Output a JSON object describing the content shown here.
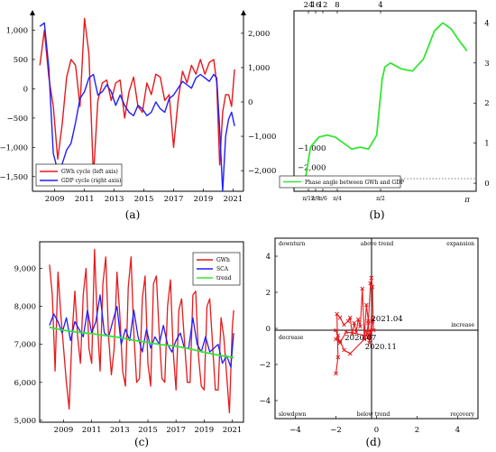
{
  "chart_data": [
    {
      "panel": "a",
      "type": "line",
      "caption": "(a)",
      "x_ticks": [
        "2009",
        "2011",
        "2013",
        "2015",
        "2017",
        "2019",
        "2021"
      ],
      "y_left_ticks": [
        "1,000",
        "500",
        "0",
        "−500",
        "−1,000",
        "−1,500"
      ],
      "y_right_ticks": [
        "2,000",
        "1,000",
        "0",
        "−1,000",
        "−2,000"
      ],
      "y_left_lim": [
        -1750,
        1300
      ],
      "y_right_lim": [
        -2600,
        2600
      ],
      "x_lim": [
        2007.5,
        2021.7
      ],
      "legend_position": "bottom-left",
      "series": [
        {
          "name": "GWh cycle (left axis)",
          "color": "#e41a1c",
          "axis": "left",
          "x": [
            2008.0,
            2008.3,
            2008.6,
            2008.9,
            2009.2,
            2009.5,
            2009.8,
            2010.1,
            2010.4,
            2010.7,
            2011.0,
            2011.3,
            2011.6,
            2011.9,
            2012.2,
            2012.5,
            2012.8,
            2013.1,
            2013.4,
            2013.7,
            2014.0,
            2014.3,
            2014.6,
            2014.9,
            2015.2,
            2015.5,
            2015.8,
            2016.1,
            2016.4,
            2016.7,
            2017.0,
            2017.3,
            2017.6,
            2017.9,
            2018.2,
            2018.5,
            2018.8,
            2019.1,
            2019.4,
            2019.7,
            2019.9,
            2020.1,
            2020.3,
            2020.5,
            2020.7,
            2020.9,
            2021.1
          ],
          "y": [
            400,
            1000,
            200,
            -300,
            -1200,
            -600,
            200,
            500,
            400,
            -300,
            1200,
            600,
            -1500,
            -200,
            100,
            150,
            -200,
            100,
            150,
            -500,
            -50,
            200,
            -300,
            -400,
            100,
            -100,
            250,
            200,
            -200,
            -100,
            -1000,
            -200,
            300,
            100,
            400,
            250,
            500,
            250,
            450,
            500,
            100,
            -1300,
            -400,
            -100,
            -100,
            -300,
            330
          ]
        },
        {
          "name": "GDP cycle (right axis)",
          "color": "#1f1fff",
          "axis": "right",
          "x": [
            2008.0,
            2008.3,
            2008.6,
            2008.9,
            2009.2,
            2009.5,
            2009.8,
            2010.1,
            2010.4,
            2010.7,
            2011.0,
            2011.3,
            2011.6,
            2011.9,
            2012.2,
            2012.5,
            2012.8,
            2013.1,
            2013.4,
            2013.7,
            2014.0,
            2014.3,
            2014.6,
            2014.9,
            2015.2,
            2015.5,
            2015.8,
            2016.1,
            2016.4,
            2016.7,
            2017.0,
            2017.3,
            2017.6,
            2017.9,
            2018.2,
            2018.5,
            2018.8,
            2019.1,
            2019.4,
            2019.7,
            2019.9,
            2020.1,
            2020.3,
            2020.5,
            2020.7,
            2020.9,
            2021.1
          ],
          "y": [
            2200,
            2300,
            1000,
            -1500,
            -2000,
            -1800,
            -1400,
            -1200,
            -600,
            100,
            300,
            700,
            800,
            200,
            300,
            500,
            300,
            -100,
            200,
            -100,
            -300,
            -400,
            -100,
            -200,
            -400,
            -300,
            0,
            -200,
            -300,
            100,
            200,
            400,
            600,
            500,
            400,
            700,
            800,
            700,
            600,
            800,
            700,
            -800,
            -2600,
            -1000,
            -500,
            -300,
            -700
          ]
        }
      ]
    },
    {
      "panel": "b",
      "type": "line",
      "caption": "(b)",
      "top_ticks": [
        "24",
        "16",
        "12",
        "8",
        "4"
      ],
      "bottom_tick_pi": "π",
      "bottom_small_ticks": [
        "π/12",
        "π/8",
        "π/6",
        "π/4",
        "π/2"
      ],
      "y_right_ticks": [
        "4",
        "3",
        "2",
        "1",
        "0"
      ],
      "y_left_ticks": [
        "−1,000",
        "−2,000"
      ],
      "x_lim": [
        0,
        3.1416
      ],
      "y_lim": [
        -0.2,
        4.3
      ],
      "legend_position": "bottom-left",
      "series": [
        {
          "name": "Phase angle between GWh and GDP",
          "color": "#33e633",
          "x": [
            0.2,
            0.3,
            0.45,
            0.6,
            0.75,
            0.9,
            1.05,
            1.2,
            1.35,
            1.5,
            1.6,
            1.65,
            1.75,
            1.95,
            2.15,
            2.35,
            2.55,
            2.7,
            2.85,
            3.0,
            3.14
          ],
          "y": [
            0.05,
            0.9,
            1.15,
            1.2,
            1.15,
            1.0,
            0.85,
            0.9,
            0.85,
            1.2,
            2.6,
            2.9,
            3.0,
            2.85,
            2.8,
            3.1,
            3.8,
            4.0,
            3.85,
            3.55,
            3.3
          ]
        }
      ]
    },
    {
      "panel": "c",
      "type": "line",
      "caption": "(c)",
      "x_ticks": [
        "2009",
        "2011",
        "2013",
        "2015",
        "2017",
        "2019",
        "2021"
      ],
      "y_ticks": [
        "9,000",
        "8,000",
        "7,000",
        "6,000",
        "5,000"
      ],
      "x_lim": [
        2007.3,
        2021.8
      ],
      "y_lim": [
        4950,
        9700
      ],
      "legend_position": "top-right",
      "series": [
        {
          "name": "GWh",
          "color": "#e41a1c",
          "x": [
            2008.0,
            2008.2,
            2008.4,
            2008.6,
            2008.8,
            2009.0,
            2009.2,
            2009.4,
            2009.6,
            2009.8,
            2010.0,
            2010.2,
            2010.4,
            2010.6,
            2010.8,
            2011.0,
            2011.2,
            2011.4,
            2011.6,
            2011.8,
            2012.0,
            2012.2,
            2012.4,
            2012.6,
            2012.8,
            2013.0,
            2013.2,
            2013.4,
            2013.6,
            2013.8,
            2014.0,
            2014.2,
            2014.4,
            2014.6,
            2014.8,
            2015.0,
            2015.2,
            2015.4,
            2015.6,
            2015.8,
            2016.0,
            2016.2,
            2016.4,
            2016.6,
            2016.8,
            2017.0,
            2017.2,
            2017.4,
            2017.6,
            2017.8,
            2018.0,
            2018.2,
            2018.4,
            2018.6,
            2018.8,
            2019.0,
            2019.2,
            2019.4,
            2019.6,
            2019.8,
            2020.0,
            2020.2,
            2020.4,
            2020.6,
            2020.8,
            2021.0,
            2021.1
          ],
          "y": [
            9100,
            8300,
            6300,
            8900,
            7800,
            6900,
            6000,
            5300,
            7200,
            8400,
            7200,
            6500,
            8300,
            9000,
            6900,
            6500,
            9500,
            7600,
            6300,
            8600,
            9300,
            7200,
            6200,
            6900,
            8900,
            7800,
            6300,
            5900,
            8500,
            9300,
            7300,
            6000,
            6100,
            8200,
            8800,
            6500,
            5900,
            8600,
            8800,
            7300,
            6100,
            6000,
            8000,
            8700,
            6800,
            5800,
            7900,
            8200,
            7100,
            6000,
            6000,
            8300,
            8400,
            6700,
            5900,
            5800,
            8000,
            8200,
            7000,
            5800,
            5800,
            7700,
            7200,
            6200,
            5200,
            7400,
            7900
          ]
        },
        {
          "name": "SCA",
          "color": "#1f1fff",
          "x": [
            2008.0,
            2008.3,
            2008.6,
            2008.9,
            2009.2,
            2009.5,
            2009.8,
            2010.1,
            2010.4,
            2010.7,
            2011.0,
            2011.3,
            2011.6,
            2011.9,
            2012.2,
            2012.5,
            2012.8,
            2013.1,
            2013.4,
            2013.7,
            2014.0,
            2014.3,
            2014.6,
            2014.9,
            2015.2,
            2015.5,
            2015.8,
            2016.1,
            2016.4,
            2016.7,
            2017.0,
            2017.3,
            2017.6,
            2017.9,
            2018.2,
            2018.5,
            2018.8,
            2019.1,
            2019.4,
            2019.7,
            2020.0,
            2020.3,
            2020.6,
            2020.9,
            2021.1
          ],
          "y": [
            7500,
            7800,
            7600,
            7300,
            7700,
            7100,
            7600,
            7400,
            7200,
            7900,
            7300,
            7600,
            8300,
            7300,
            7200,
            7600,
            8000,
            7000,
            7400,
            7100,
            7900,
            7200,
            6800,
            7400,
            6900,
            7200,
            7000,
            7500,
            7000,
            6800,
            7100,
            7300,
            6900,
            6900,
            7700,
            7000,
            6800,
            7200,
            6800,
            6900,
            7000,
            6500,
            6700,
            6400,
            7300
          ]
        },
        {
          "name": "trend",
          "color": "#33e633",
          "x": [
            2008.0,
            2009.0,
            2010.0,
            2011.0,
            2012.0,
            2013.0,
            2014.0,
            2015.0,
            2016.0,
            2017.0,
            2018.0,
            2019.0,
            2020.0,
            2021.1
          ],
          "y": [
            7450,
            7370,
            7320,
            7280,
            7230,
            7180,
            7110,
            7050,
            6990,
            6950,
            6880,
            6790,
            6720,
            6650
          ]
        }
      ]
    },
    {
      "panel": "d",
      "type": "scatter",
      "caption": "(d)",
      "x_ticks": [
        "−4",
        "−2",
        "0",
        "2",
        "4"
      ],
      "y_ticks": [
        "4",
        "2",
        "0",
        "−2",
        "−4"
      ],
      "x_lim": [
        -5,
        5
      ],
      "y_lim": [
        -5,
        5
      ],
      "quadrant_labels": {
        "top_left": "downturn",
        "top_middle": "above trend",
        "top_right": "expansion",
        "left": "decrease",
        "right": "increase",
        "bottom_left": "slowdown",
        "bottom_middle": "below trend",
        "bottom_right": "recovery"
      },
      "point_labels": [
        {
          "text": "2021.04",
          "x": -0.4,
          "y": 0.55
        },
        {
          "text": "2020.07",
          "x": -1.7,
          "y": -0.5
        },
        {
          "text": "2020.11",
          "x": -0.7,
          "y": -1.0
        }
      ],
      "series": [
        {
          "name": "",
          "color": "#e41a1c",
          "x": [
            -2.0,
            -1.9,
            -1.95,
            -1.8,
            -1.6,
            -1.4,
            -1.3,
            -1.2,
            -1.1,
            -1.0,
            -0.9,
            -0.8,
            -0.7,
            -0.6,
            -0.5,
            -0.4,
            -0.3,
            -0.25,
            -0.2,
            -0.15,
            -0.5,
            -0.3,
            -0.2,
            -0.35,
            -0.4,
            -0.5,
            -1.5,
            -1.8,
            -2.0,
            -1.9,
            -2.0,
            -1.8,
            -1.6,
            -1.3,
            -0.6,
            -0.35,
            -0.2
          ],
          "y": [
            -2.5,
            -1.6,
            0.8,
            0.6,
            0.2,
            0.4,
            0.6,
            -0.3,
            0.3,
            -0.2,
            0.5,
            0.1,
            2.2,
            -0.5,
            1.3,
            0.4,
            2.5,
            2.8,
            2.3,
            -0.1,
            -0.2,
            -0.5,
            0.4,
            -0.8,
            0.3,
            -0.4,
            -0.2,
            -0.8,
            -0.1,
            -0.4,
            -0.6,
            -0.7,
            -1.2,
            -1.4,
            -0.6,
            -0.5,
            0.5
          ]
        }
      ]
    }
  ]
}
